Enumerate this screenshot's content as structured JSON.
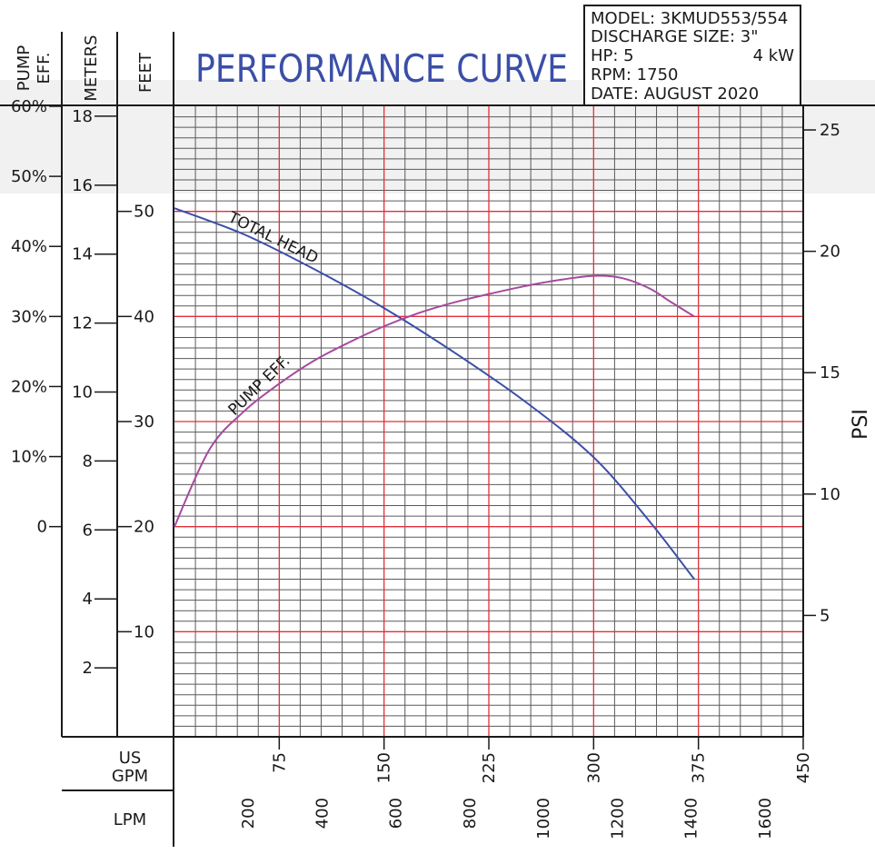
{
  "chart_data": {
    "type": "line",
    "title": "PERFORMANCE CURVE",
    "info_box": [
      "MODEL: 3KMUD553/554",
      "DISCHARGE SIZE: 3\"",
      "HP: 5",
      "4 kW",
      "RPM: 1750",
      "DATE: AUGUST 2020"
    ],
    "left_axes": {
      "pump_eff": {
        "label_lines": [
          "PUMP",
          "EFF."
        ],
        "ticks": [
          {
            "v": 60,
            "label": "60%"
          },
          {
            "v": 50,
            "label": "50%"
          },
          {
            "v": 40,
            "label": "40%"
          },
          {
            "v": 30,
            "label": "30%"
          },
          {
            "v": 20,
            "label": "20%"
          },
          {
            "v": 10,
            "label": "10%"
          },
          {
            "v": 0,
            "label": "0"
          }
        ]
      },
      "meters": {
        "label": "METERS",
        "ticks": [
          18,
          16,
          14,
          12,
          10,
          8,
          6,
          4,
          2
        ]
      },
      "feet": {
        "label": "FEET",
        "ticks": [
          50,
          40,
          30,
          20,
          10
        ]
      }
    },
    "right_axis": {
      "label": "PSI",
      "ticks": [
        25,
        20,
        15,
        10,
        5
      ]
    },
    "x_axes": {
      "gpm": {
        "label_lines": [
          "US",
          "GPM"
        ],
        "ticks": [
          75,
          150,
          225,
          300,
          375,
          450
        ],
        "range": [
          0,
          450
        ]
      },
      "lpm": {
        "label": "LPM",
        "ticks": [
          200,
          400,
          600,
          800,
          1000,
          1200,
          1400,
          1600
        ]
      }
    },
    "ylim_feet": [
      0,
      60
    ],
    "series": [
      {
        "name": "TOTAL HEAD",
        "color": "#3b4fa8",
        "unit": "feet",
        "x_gpm": [
          0,
          50,
          100,
          150,
          200,
          250,
          300,
          340,
          372
        ],
        "y": [
          50.3,
          47.8,
          44.5,
          40.8,
          36.6,
          32.0,
          26.6,
          20.5,
          15.0
        ]
      },
      {
        "name": "PUMP EFF.",
        "color": "#a64a9e",
        "unit": "percent",
        "x_gpm": [
          0,
          25,
          50,
          75,
          100,
          125,
          150,
          175,
          200,
          225,
          250,
          275,
          300,
          320,
          340,
          355,
          372
        ],
        "y": [
          0,
          11,
          16.5,
          20.4,
          23.7,
          26.3,
          28.6,
          30.5,
          32,
          33.2,
          34.3,
          35.2,
          35.8,
          35.5,
          34,
          32.1,
          30
        ]
      }
    ],
    "grid": true
  }
}
